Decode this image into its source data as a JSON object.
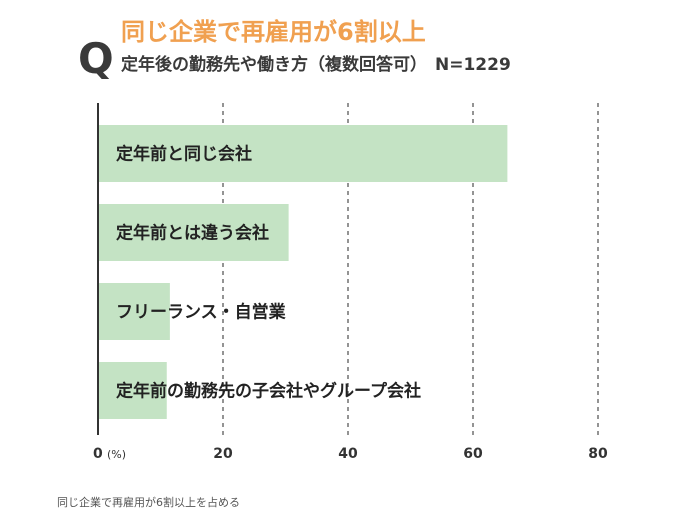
{
  "question_mark": "Q",
  "headline": "同じ企業で再雇用が6割以上",
  "subtitle": {
    "text": "定年後の勤務先や働き方（複数回答可）",
    "n": "N=1229"
  },
  "caption": "同じ企業で再雇用が6割以上を占める",
  "chart_data": {
    "type": "bar",
    "orientation": "horizontal",
    "title": "同じ企業で再雇用が6割以上",
    "subtitle": "定年後の勤務先や働き方（複数回答可） N=1229",
    "categories": [
      "定年前と同じ会社",
      "定年前とは違う会社",
      "フリーランス・自営業",
      "定年前の勤務先の子会社やグループ会社"
    ],
    "values": [
      65.5,
      30.5,
      11.5,
      11
    ],
    "xlim": [
      0,
      80
    ],
    "xticks": [
      0,
      20,
      40,
      60,
      80
    ],
    "xunit": "(%)",
    "grid": "vertical dashed",
    "colors": {
      "bar": "#c4e3c4",
      "axis": "#333333",
      "grid": "#666666"
    }
  }
}
